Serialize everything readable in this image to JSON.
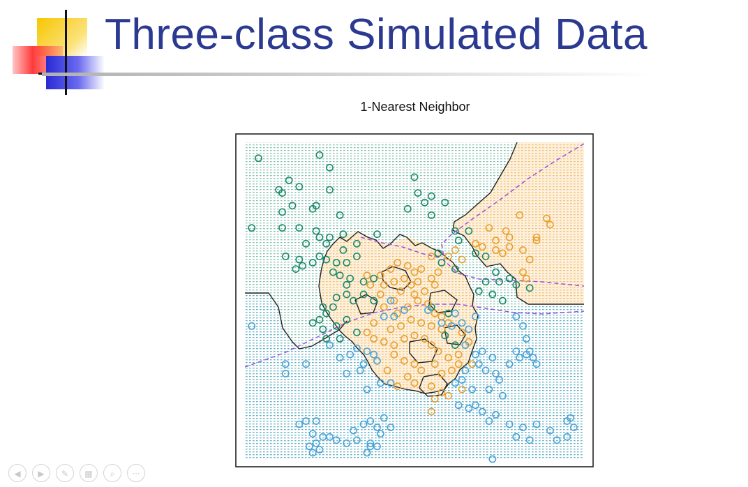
{
  "slide": {
    "title": "Three-class Simulated Data"
  },
  "colors": {
    "title": "#2b3990",
    "class_green": "#1a8a6a",
    "class_orange": "#e8a030",
    "class_blue": "#4aa3d8",
    "bayes_boundary": "#9b4fe0",
    "knn_boundary": "#222222"
  },
  "chart_data": {
    "type": "scatter",
    "title": "1-Nearest Neighbor",
    "xlabel": "",
    "ylabel": "",
    "xlim": [
      0,
      1
    ],
    "ylim": [
      0,
      1
    ],
    "grid": false,
    "legend": "none",
    "background": "classification regions shown as dense dot grid",
    "series": [
      {
        "color": "#1a8a6a",
        "points": [
          [
            0.04,
            0.95
          ],
          [
            0.22,
            0.96
          ],
          [
            0.25,
            0.92
          ],
          [
            0.13,
            0.88
          ],
          [
            0.1,
            0.85
          ],
          [
            0.11,
            0.84
          ],
          [
            0.16,
            0.86
          ],
          [
            0.25,
            0.85
          ],
          [
            0.2,
            0.79
          ],
          [
            0.21,
            0.8
          ],
          [
            0.14,
            0.8
          ],
          [
            0.11,
            0.78
          ],
          [
            0.28,
            0.77
          ],
          [
            0.5,
            0.89
          ],
          [
            0.51,
            0.84
          ],
          [
            0.55,
            0.83
          ],
          [
            0.53,
            0.81
          ],
          [
            0.48,
            0.79
          ],
          [
            0.55,
            0.77
          ],
          [
            0.59,
            0.81
          ],
          [
            0.02,
            0.73
          ],
          [
            0.11,
            0.73
          ],
          [
            0.16,
            0.73
          ],
          [
            0.21,
            0.72
          ],
          [
            0.22,
            0.7
          ],
          [
            0.18,
            0.68
          ],
          [
            0.24,
            0.68
          ],
          [
            0.25,
            0.7
          ],
          [
            0.29,
            0.71
          ],
          [
            0.33,
            0.68
          ],
          [
            0.39,
            0.71
          ],
          [
            0.29,
            0.66
          ],
          [
            0.33,
            0.64
          ],
          [
            0.12,
            0.64
          ],
          [
            0.16,
            0.63
          ],
          [
            0.17,
            0.61
          ],
          [
            0.2,
            0.62
          ],
          [
            0.22,
            0.64
          ],
          [
            0.24,
            0.63
          ],
          [
            0.3,
            0.62
          ],
          [
            0.27,
            0.62
          ],
          [
            0.15,
            0.6
          ],
          [
            0.26,
            0.59
          ],
          [
            0.28,
            0.58
          ],
          [
            0.31,
            0.57
          ],
          [
            0.3,
            0.55
          ],
          [
            0.35,
            0.56
          ],
          [
            0.38,
            0.57
          ],
          [
            0.3,
            0.52
          ],
          [
            0.32,
            0.5
          ],
          [
            0.35,
            0.52
          ],
          [
            0.38,
            0.5
          ],
          [
            0.27,
            0.51
          ],
          [
            0.26,
            0.48
          ],
          [
            0.23,
            0.48
          ],
          [
            0.24,
            0.46
          ],
          [
            0.22,
            0.44
          ],
          [
            0.2,
            0.43
          ],
          [
            0.23,
            0.41
          ],
          [
            0.27,
            0.42
          ],
          [
            0.3,
            0.44
          ],
          [
            0.24,
            0.38
          ],
          [
            0.28,
            0.38
          ],
          [
            0.33,
            0.4
          ],
          [
            0.62,
            0.72
          ],
          [
            0.66,
            0.72
          ],
          [
            0.63,
            0.69
          ],
          [
            0.68,
            0.65
          ],
          [
            0.71,
            0.64
          ],
          [
            0.74,
            0.59
          ],
          [
            0.75,
            0.56
          ],
          [
            0.8,
            0.55
          ],
          [
            0.84,
            0.54
          ],
          [
            0.78,
            0.57
          ],
          [
            0.71,
            0.56
          ],
          [
            0.69,
            0.53
          ],
          [
            0.73,
            0.52
          ],
          [
            0.76,
            0.5
          ],
          [
            0.62,
            0.6
          ],
          [
            0.57,
            0.65
          ],
          [
            0.58,
            0.62
          ],
          [
            0.55,
            0.48
          ],
          [
            0.6,
            0.46
          ],
          [
            0.59,
            0.39
          ],
          [
            0.62,
            0.36
          ]
        ]
      },
      {
        "color": "#e8a030",
        "points": [
          [
            0.81,
            0.77
          ],
          [
            0.89,
            0.76
          ],
          [
            0.9,
            0.74
          ],
          [
            0.72,
            0.73
          ],
          [
            0.77,
            0.72
          ],
          [
            0.78,
            0.7
          ],
          [
            0.86,
            0.7
          ],
          [
            0.86,
            0.69
          ],
          [
            0.74,
            0.69
          ],
          [
            0.74,
            0.66
          ],
          [
            0.76,
            0.65
          ],
          [
            0.78,
            0.67
          ],
          [
            0.82,
            0.66
          ],
          [
            0.84,
            0.63
          ],
          [
            0.82,
            0.59
          ],
          [
            0.83,
            0.57
          ],
          [
            0.68,
            0.68
          ],
          [
            0.7,
            0.67
          ],
          [
            0.62,
            0.66
          ],
          [
            0.64,
            0.63
          ],
          [
            0.6,
            0.64
          ],
          [
            0.55,
            0.64
          ],
          [
            0.52,
            0.6
          ],
          [
            0.5,
            0.59
          ],
          [
            0.48,
            0.61
          ],
          [
            0.45,
            0.62
          ],
          [
            0.43,
            0.6
          ],
          [
            0.4,
            0.58
          ],
          [
            0.36,
            0.58
          ],
          [
            0.37,
            0.55
          ],
          [
            0.41,
            0.55
          ],
          [
            0.44,
            0.56
          ],
          [
            0.47,
            0.57
          ],
          [
            0.49,
            0.55
          ],
          [
            0.51,
            0.56
          ],
          [
            0.55,
            0.57
          ],
          [
            0.57,
            0.59
          ],
          [
            0.56,
            0.55
          ],
          [
            0.53,
            0.53
          ],
          [
            0.5,
            0.52
          ],
          [
            0.46,
            0.53
          ],
          [
            0.44,
            0.5
          ],
          [
            0.4,
            0.52
          ],
          [
            0.41,
            0.48
          ],
          [
            0.45,
            0.46
          ],
          [
            0.48,
            0.48
          ],
          [
            0.51,
            0.5
          ],
          [
            0.54,
            0.49
          ],
          [
            0.56,
            0.46
          ],
          [
            0.58,
            0.45
          ],
          [
            0.6,
            0.43
          ],
          [
            0.58,
            0.41
          ],
          [
            0.55,
            0.42
          ],
          [
            0.52,
            0.43
          ],
          [
            0.49,
            0.44
          ],
          [
            0.46,
            0.42
          ],
          [
            0.43,
            0.41
          ],
          [
            0.38,
            0.43
          ],
          [
            0.36,
            0.4
          ],
          [
            0.38,
            0.38
          ],
          [
            0.41,
            0.37
          ],
          [
            0.44,
            0.36
          ],
          [
            0.47,
            0.38
          ],
          [
            0.5,
            0.39
          ],
          [
            0.53,
            0.38
          ],
          [
            0.55,
            0.36
          ],
          [
            0.57,
            0.34
          ],
          [
            0.6,
            0.32
          ],
          [
            0.63,
            0.33
          ],
          [
            0.64,
            0.4
          ],
          [
            0.66,
            0.37
          ],
          [
            0.44,
            0.33
          ],
          [
            0.47,
            0.31
          ],
          [
            0.5,
            0.3
          ],
          [
            0.52,
            0.28
          ],
          [
            0.56,
            0.3
          ],
          [
            0.58,
            0.27
          ],
          [
            0.61,
            0.28
          ],
          [
            0.48,
            0.26
          ],
          [
            0.5,
            0.24
          ],
          [
            0.55,
            0.23
          ],
          [
            0.58,
            0.21
          ],
          [
            0.56,
            0.19
          ],
          [
            0.6,
            0.2
          ],
          [
            0.64,
            0.22
          ],
          [
            0.42,
            0.28
          ],
          [
            0.45,
            0.23
          ],
          [
            0.63,
            0.3
          ],
          [
            0.67,
            0.3
          ],
          [
            0.55,
            0.15
          ]
        ]
      },
      {
        "color": "#4aa3d8",
        "points": [
          [
            0.02,
            0.42
          ],
          [
            0.12,
            0.3
          ],
          [
            0.12,
            0.27
          ],
          [
            0.18,
            0.3
          ],
          [
            0.28,
            0.32
          ],
          [
            0.3,
            0.27
          ],
          [
            0.35,
            0.3
          ],
          [
            0.31,
            0.33
          ],
          [
            0.25,
            0.36
          ],
          [
            0.33,
            0.35
          ],
          [
            0.36,
            0.34
          ],
          [
            0.38,
            0.33
          ],
          [
            0.34,
            0.28
          ],
          [
            0.39,
            0.31
          ],
          [
            0.4,
            0.24
          ],
          [
            0.36,
            0.22
          ],
          [
            0.43,
            0.24
          ],
          [
            0.41,
            0.45
          ],
          [
            0.43,
            0.5
          ],
          [
            0.44,
            0.45
          ],
          [
            0.47,
            0.47
          ],
          [
            0.54,
            0.47
          ],
          [
            0.58,
            0.43
          ],
          [
            0.62,
            0.46
          ],
          [
            0.61,
            0.42
          ],
          [
            0.64,
            0.43
          ],
          [
            0.66,
            0.41
          ],
          [
            0.68,
            0.45
          ],
          [
            0.65,
            0.36
          ],
          [
            0.68,
            0.33
          ],
          [
            0.69,
            0.3
          ],
          [
            0.71,
            0.28
          ],
          [
            0.7,
            0.34
          ],
          [
            0.73,
            0.32
          ],
          [
            0.74,
            0.27
          ],
          [
            0.75,
            0.25
          ],
          [
            0.72,
            0.22
          ],
          [
            0.76,
            0.2
          ],
          [
            0.78,
            0.3
          ],
          [
            0.81,
            0.32
          ],
          [
            0.8,
            0.34
          ],
          [
            0.83,
            0.33
          ],
          [
            0.84,
            0.34
          ],
          [
            0.85,
            0.32
          ],
          [
            0.86,
            0.3
          ],
          [
            0.83,
            0.38
          ],
          [
            0.82,
            0.42
          ],
          [
            0.8,
            0.45
          ],
          [
            0.62,
            0.24
          ],
          [
            0.64,
            0.25
          ],
          [
            0.65,
            0.28
          ],
          [
            0.67,
            0.22
          ],
          [
            0.63,
            0.17
          ],
          [
            0.66,
            0.16
          ],
          [
            0.68,
            0.17
          ],
          [
            0.7,
            0.15
          ],
          [
            0.74,
            0.14
          ],
          [
            0.72,
            0.12
          ],
          [
            0.78,
            0.11
          ],
          [
            0.82,
            0.1
          ],
          [
            0.86,
            0.11
          ],
          [
            0.9,
            0.09
          ],
          [
            0.95,
            0.12
          ],
          [
            0.96,
            0.13
          ],
          [
            0.97,
            0.1
          ],
          [
            0.95,
            0.07
          ],
          [
            0.92,
            0.06
          ],
          [
            0.84,
            0.06
          ],
          [
            0.8,
            0.07
          ],
          [
            0.16,
            0.11
          ],
          [
            0.18,
            0.12
          ],
          [
            0.2,
            0.08
          ],
          [
            0.23,
            0.07
          ],
          [
            0.25,
            0.07
          ],
          [
            0.27,
            0.06
          ],
          [
            0.32,
            0.09
          ],
          [
            0.35,
            0.11
          ],
          [
            0.37,
            0.12
          ],
          [
            0.39,
            0.1
          ],
          [
            0.4,
            0.08
          ],
          [
            0.33,
            0.06
          ],
          [
            0.3,
            0.05
          ],
          [
            0.37,
            0.05
          ],
          [
            0.37,
            0.04
          ],
          [
            0.39,
            0.04
          ],
          [
            0.21,
            0.05
          ],
          [
            0.22,
            0.03
          ],
          [
            0.19,
            0.04
          ],
          [
            0.2,
            0.02
          ],
          [
            0.41,
            0.13
          ],
          [
            0.43,
            0.1
          ],
          [
            0.36,
            0.02
          ],
          [
            0.21,
            0.12
          ],
          [
            0.73,
            0.0
          ]
        ]
      }
    ]
  },
  "nav": {
    "buttons": [
      {
        "name": "prev-slide-icon",
        "glyph": "◀"
      },
      {
        "name": "next-slide-icon",
        "glyph": "▶"
      },
      {
        "name": "pen-icon",
        "glyph": "✎"
      },
      {
        "name": "slides-icon",
        "glyph": "▦"
      },
      {
        "name": "zoom-icon",
        "glyph": "⌕"
      },
      {
        "name": "more-icon",
        "glyph": "···"
      }
    ]
  }
}
